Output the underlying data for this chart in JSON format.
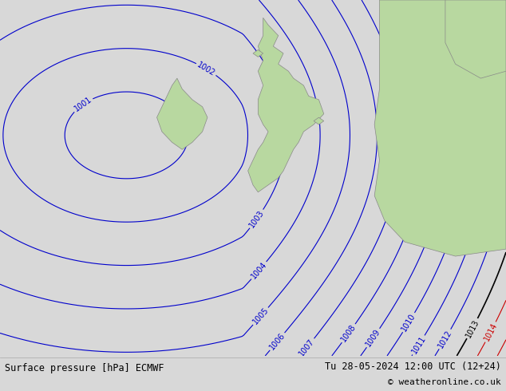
{
  "title_left": "Surface pressure [hPa] ECMWF",
  "title_right": "Tu 28-05-2024 12:00 UTC (12+24)",
  "copyright": "© weatheronline.co.uk",
  "bg_color": "#d8d8d8",
  "land_color": "#b8d8a0",
  "sea_color": "#d8d8d8",
  "blue_contour_color": "#0000cc",
  "black_contour_color": "#000000",
  "red_contour_color": "#cc0000",
  "label_fontsize": 7,
  "bottom_bar_color": "#e8e8e8",
  "bottom_text_color": "#000000"
}
